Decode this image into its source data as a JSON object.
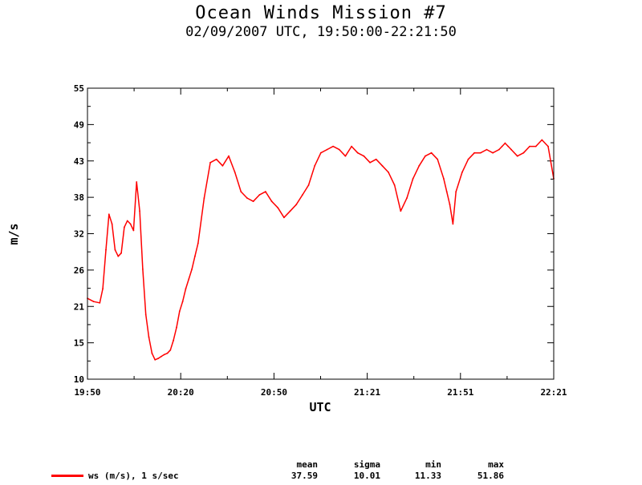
{
  "chart_data": {
    "type": "line",
    "title": "Ocean Winds Mission #7",
    "subtitle": "02/09/2007  UTC, 19:50:00-22:21:50",
    "xlabel": "UTC",
    "ylabel": "m/s",
    "x_ticks": [
      "19:50",
      "20:20",
      "20:50",
      "21:21",
      "21:51",
      "22:21"
    ],
    "y_ticks": [
      "10",
      "15",
      "21",
      "26",
      "32",
      "38",
      "43",
      "49",
      "55"
    ],
    "ylim": [
      10,
      55
    ],
    "xlim_minutes": [
      0,
      151.83
    ],
    "grid": false,
    "series": [
      {
        "name": "ws (m/s), 1 s/sec",
        "color": "#ff0000",
        "x_minutes": [
          0,
          2,
          4,
          5,
          6,
          7,
          8,
          9,
          10,
          11,
          12,
          13,
          14,
          15,
          16,
          17,
          18,
          19,
          20,
          21,
          22,
          23,
          24,
          25,
          26,
          27,
          28,
          29,
          30,
          31,
          32,
          33,
          34,
          35,
          36,
          38,
          40,
          42,
          44,
          46,
          48,
          50,
          52,
          54,
          56,
          58,
          60,
          62,
          64,
          66,
          68,
          70,
          72,
          74,
          76,
          78,
          80,
          82,
          84,
          86,
          88,
          90,
          92,
          94,
          96,
          98,
          100,
          102,
          104,
          106,
          108,
          110,
          112,
          114,
          116,
          117,
          118,
          119,
          120,
          122,
          124,
          126,
          128,
          130,
          132,
          134,
          135,
          136,
          137,
          138,
          140,
          142,
          144,
          146,
          148,
          150,
          151.83
        ],
        "values": [
          22.5,
          22.0,
          21.8,
          24.0,
          30.0,
          35.5,
          34.0,
          30.0,
          29.0,
          29.5,
          33.5,
          34.5,
          34.0,
          33.0,
          40.5,
          36.0,
          27.0,
          20.0,
          16.5,
          14.0,
          13.0,
          13.2,
          13.5,
          13.8,
          14.0,
          14.5,
          16.0,
          18.0,
          20.5,
          22.0,
          24.0,
          25.5,
          27.0,
          29.0,
          31.0,
          38.0,
          43.5,
          44.0,
          43.0,
          44.5,
          42.0,
          39.0,
          38.0,
          37.5,
          38.5,
          39.0,
          37.5,
          36.5,
          35.0,
          36.0,
          37.0,
          38.5,
          40.0,
          43.0,
          45.0,
          45.5,
          46.0,
          45.5,
          44.5,
          46.0,
          45.0,
          44.5,
          43.5,
          44.0,
          43.0,
          42.0,
          40.0,
          36.0,
          38.0,
          41.0,
          43.0,
          44.5,
          45.0,
          44.0,
          41.0,
          39.0,
          37.0,
          34.0,
          39.0,
          42.0,
          44.0,
          45.0,
          45.0,
          45.5,
          45.0,
          45.5,
          46.0,
          46.5,
          46.0,
          45.5,
          44.5,
          45.0,
          46.0,
          46.0,
          47.0,
          46.0,
          41.0
        ]
      }
    ],
    "stats": {
      "headers": [
        "mean",
        "sigma",
        "min",
        "max"
      ],
      "values": [
        "37.59",
        "10.01",
        "11.33",
        "51.86"
      ]
    }
  }
}
